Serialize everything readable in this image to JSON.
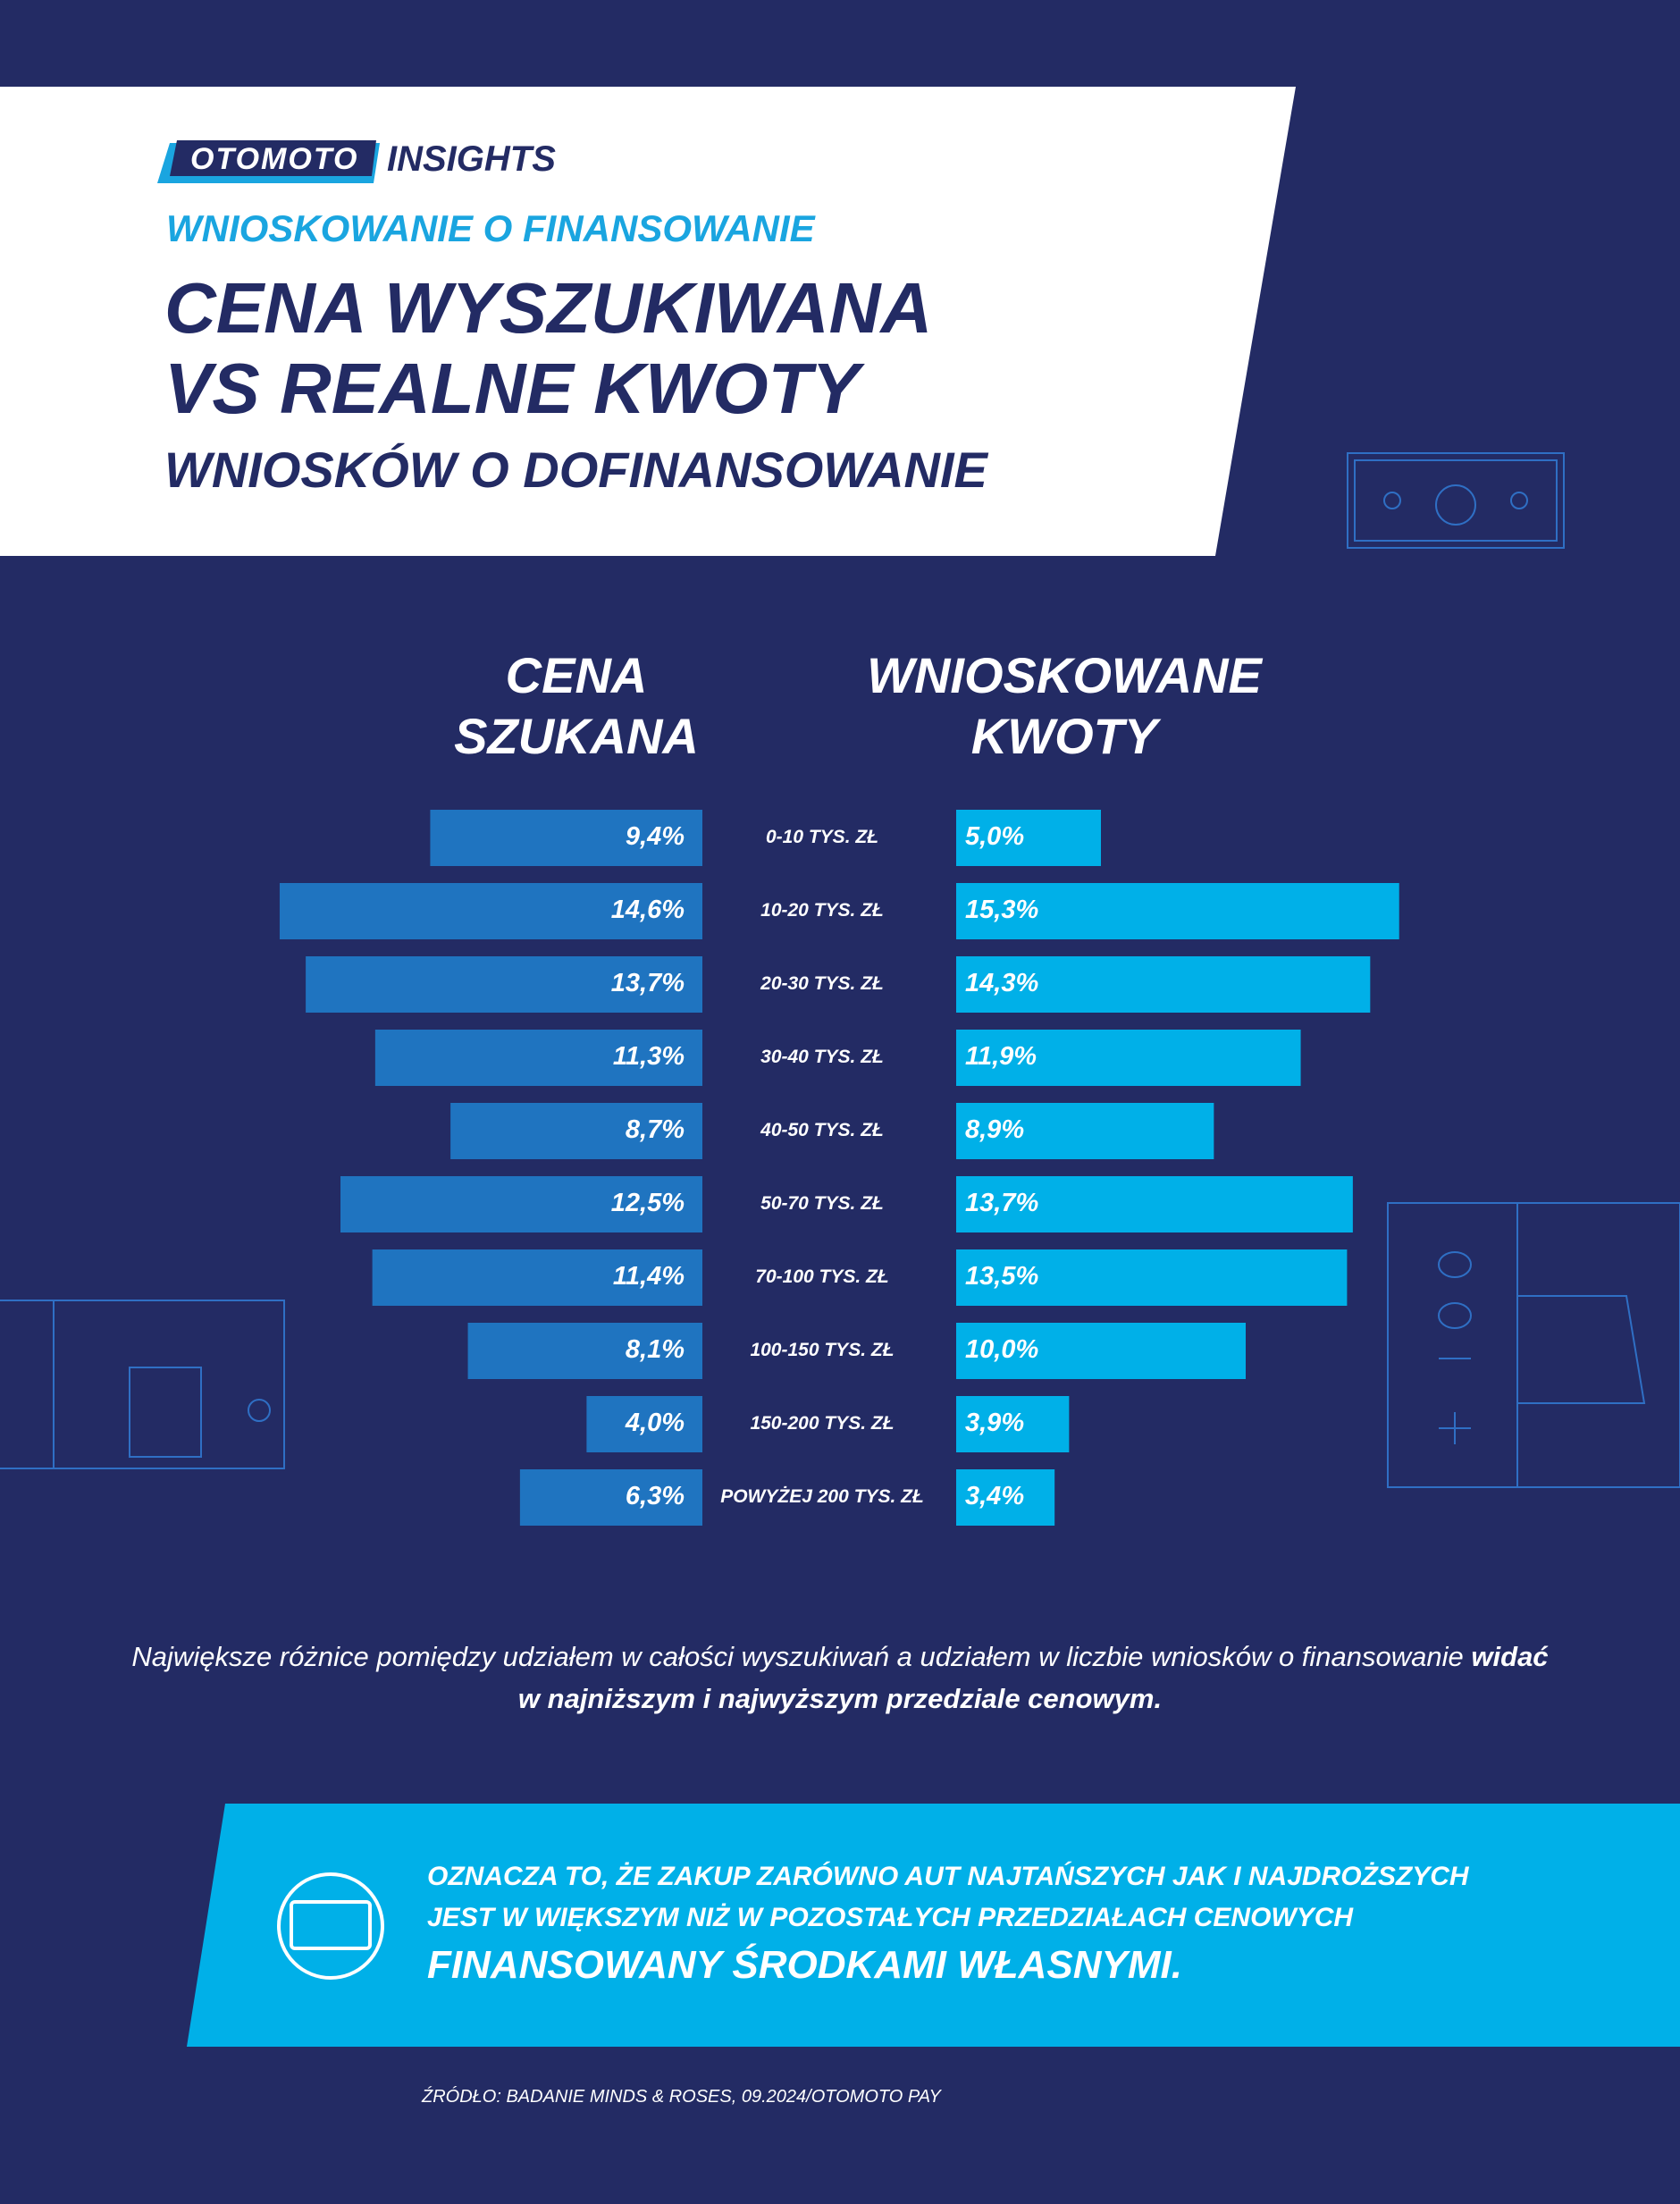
{
  "header": {
    "logo": "OTOMOTO",
    "brand": "INSIGHTS",
    "kicker": "WNIOSKOWANIE O FINANSOWANIE",
    "title_lines": [
      "CENA WYSZUKIWANA",
      "VS REALNE KWOTY"
    ],
    "subtitle": "WNIOSKÓW O DOFINANSOWANIE"
  },
  "chart_data": {
    "type": "butterfly",
    "categories": [
      "0-10 TYS. ZŁ",
      "10-20 TYS. ZŁ",
      "20-30 TYS. ZŁ",
      "30-40 TYS. ZŁ",
      "40-50 TYS. ZŁ",
      "50-70 TYS. ZŁ",
      "70-100 TYS. ZŁ",
      "100-150 TYS. ZŁ",
      "150-200 TYS. ZŁ",
      "POWYŻEJ 200 TYS. ZŁ"
    ],
    "series": [
      {
        "name": "CENA SZUKANA",
        "color": "#1f74c0",
        "values": [
          9.4,
          14.6,
          13.7,
          11.3,
          8.7,
          12.5,
          11.4,
          8.1,
          4.0,
          6.3
        ],
        "value_labels": [
          "9,4%",
          "14,6%",
          "13,7%",
          "11,3%",
          "8,7%",
          "12,5%",
          "11,4%",
          "8,1%",
          "4,0%",
          "6,3%"
        ]
      },
      {
        "name": "WNIOSKOWANE KWOTY",
        "color": "#00b0e8",
        "values": [
          5.0,
          15.3,
          14.3,
          11.9,
          8.9,
          13.7,
          13.5,
          10.0,
          3.9,
          3.4
        ],
        "value_labels": [
          "5,0%",
          "15,3%",
          "14,3%",
          "11,9%",
          "8,9%",
          "13,7%",
          "13,5%",
          "10,0%",
          "3,9%",
          "3,4%"
        ]
      }
    ]
  },
  "note": {
    "text": "Największe różnice pomiędzy udziałem w całości wyszukiwań a udziałem w liczbie wniosków o finansowanie",
    "emphasis": "widać w najniższym i najwyższym przedziale cenowym."
  },
  "callout": {
    "lines": [
      "OZNACZA TO, ŻE ZAKUP ZARÓWNO AUT NAJTAŃSZYCH JAK I NAJDROŻSZYCH",
      "JEST W WIĘKSZYM NIŻ W POZOSTAŁYCH PRZEDZIAŁACH CENOWYCH"
    ],
    "emphasis": "FINANSOWANY ŚRODKAMI WŁASNYMI."
  },
  "source": "ŹRÓDŁO: BADANIE MINDS & ROSES, 09.2024/OTOMOTO PAY"
}
